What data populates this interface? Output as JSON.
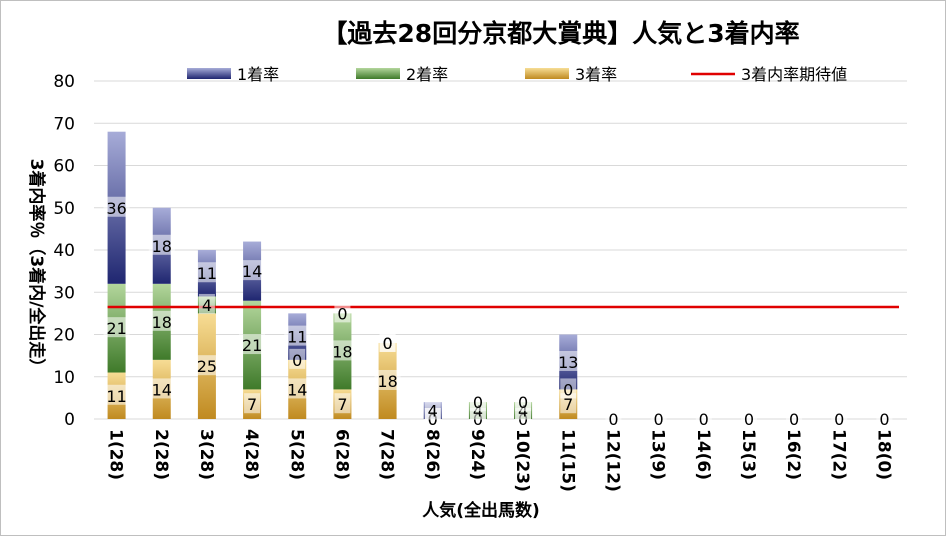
{
  "chart_data": {
    "type": "bar",
    "stacked": true,
    "title": "【過去28回分京都大賞典】人気と3着内率",
    "xlabel": "人気(全出馬数)",
    "ylabel": "3着内率％（3着内/全出走）",
    "categories": [
      "1(28)",
      "2(28)",
      "3(28)",
      "4(28)",
      "5(28)",
      "6(28)",
      "7(28)",
      "8(26)",
      "9(24)",
      "10(23)",
      "11(15)",
      "12(12)",
      "13(9)",
      "14(6)",
      "15(3)",
      "16(2)",
      "17(2)",
      "18(0)"
    ],
    "ylim": [
      0,
      80
    ],
    "yticks": [
      0,
      10,
      20,
      30,
      40,
      50,
      60,
      70,
      80
    ],
    "grid": true,
    "legend_position": "top",
    "series": [
      {
        "name": "3着率",
        "color": "#d4a640",
        "values": [
          11,
          14,
          25,
          7,
          14,
          7,
          18,
          0,
          0,
          0,
          7,
          0,
          0,
          0,
          0,
          0,
          0,
          0
        ]
      },
      {
        "name": "2着率",
        "color": "#6a9c48",
        "values": [
          21,
          18,
          4,
          21,
          0,
          18,
          0,
          0,
          4,
          4,
          0,
          0,
          0,
          0,
          0,
          0,
          0,
          0
        ]
      },
      {
        "name": "1着率",
        "color": "#3c4590",
        "values": [
          36,
          18,
          11,
          14,
          11,
          0,
          0,
          4,
          0,
          0,
          13,
          0,
          0,
          0,
          0,
          0,
          0,
          0
        ]
      }
    ],
    "labels": {
      "3着率": [
        "11",
        "14",
        "25",
        "7",
        "14",
        "7",
        "18",
        "0",
        "0",
        "0",
        "7",
        "",
        "",
        "",
        "",
        "",
        "",
        ""
      ],
      "2着率": [
        "21",
        "18",
        "4",
        "21",
        "0",
        "18",
        "0",
        "0",
        "4",
        "4",
        "0",
        "",
        "",
        "",
        "",
        "",
        "",
        ""
      ],
      "1着率": [
        "36",
        "18",
        "11",
        "14",
        "11",
        "0",
        "0",
        "4",
        "0",
        "0",
        "13",
        "0",
        "0",
        "0",
        "0",
        "0",
        "0",
        "0"
      ]
    },
    "expected_line": {
      "name": "3着内率期待値",
      "value": 26.5,
      "color": "#e00000"
    },
    "legend_order": [
      "1着率",
      "2着率",
      "3着率",
      "3着内率期待値"
    ]
  }
}
